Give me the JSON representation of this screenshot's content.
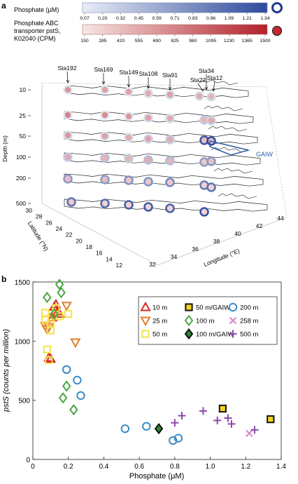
{
  "panel_labels": [
    "a",
    "b"
  ],
  "colorbars": {
    "phosphate": {
      "label_lines": [
        "Phosphate (µM)"
      ],
      "ticks": [
        "0.07",
        "0.20",
        "0.32",
        "0.45",
        "0.59",
        "0.71",
        "0.83",
        "0.96",
        "1.09",
        "1.21",
        "1.34"
      ],
      "color_low": "#e9edf7",
      "color_high": "#2d4a9b"
    },
    "psts": {
      "label_lines": [
        "Phosphate ABC",
        "transporter pstS,",
        "K02040 (CPM)"
      ],
      "ticks": [
        "150",
        "285",
        "420",
        "555",
        "690",
        "825",
        "960",
        "1095",
        "1230",
        "1365",
        "1500"
      ],
      "color_low": "#f6e6e3",
      "color_high": "#b3212b"
    }
  },
  "map3d": {
    "station_labels": [
      "Sta192",
      "Sta169",
      "Sta149",
      "Sta108",
      "Sta91",
      "Sta22",
      "Sta34",
      "Sta12"
    ],
    "depth_axis_label": "Depth (m)",
    "depth_ticks": [
      "10",
      "25",
      "50",
      "100",
      "200",
      "500"
    ],
    "latitude_axis_label": "Latitude (°N)",
    "latitude_ticks": [
      "30",
      "28",
      "26",
      "24",
      "22",
      "20",
      "18",
      "16",
      "14",
      "12"
    ],
    "longitude_axis_label": "Longitude (°E)",
    "longitude_ticks": [
      "32",
      "34",
      "36",
      "38",
      "40",
      "42",
      "44"
    ],
    "gaiw_label": "GAIW",
    "gaiw_color": "#2d5fa8"
  },
  "chart_data": {
    "type": "scatter",
    "xlabel": "Phosphate (µM)",
    "ylabel": "pstS (counts per million)",
    "xlim": [
      0,
      1.4
    ],
    "ylim": [
      0,
      1500
    ],
    "xticks": [
      "0",
      "0.2",
      "0.4",
      "0.6",
      "0.8",
      "1.0",
      "1.2",
      "1.4"
    ],
    "yticks": [
      "0",
      "500",
      "1000",
      "1500"
    ],
    "legend_position": "top-right",
    "series": [
      {
        "name": "10 m",
        "marker": "triangle-up",
        "color": "#d32a22",
        "fill": "none",
        "points": [
          [
            0.09,
            860
          ],
          [
            0.1,
            850
          ],
          [
            0.12,
            1290
          ],
          [
            0.13,
            1310
          ],
          [
            0.14,
            1250
          ],
          [
            0.11,
            1200
          ],
          [
            0.15,
            1230
          ]
        ]
      },
      {
        "name": "25 m",
        "marker": "triangle-down",
        "color": "#e07f2c",
        "fill": "none",
        "points": [
          [
            0.07,
            1130
          ],
          [
            0.08,
            1100
          ],
          [
            0.09,
            1120
          ],
          [
            0.19,
            1300
          ],
          [
            0.24,
            990
          ],
          [
            0.12,
            1200
          ]
        ]
      },
      {
        "name": "50 m",
        "marker": "square",
        "color": "#f4e24b",
        "fill": "none",
        "points": [
          [
            0.07,
            1240
          ],
          [
            0.07,
            1180
          ],
          [
            0.08,
            930
          ],
          [
            0.09,
            840
          ],
          [
            0.1,
            1090
          ],
          [
            0.1,
            1150
          ],
          [
            0.13,
            1280
          ],
          [
            0.15,
            1210
          ],
          [
            0.2,
            1230
          ]
        ]
      },
      {
        "name": "50 m/GAIW",
        "marker": "square",
        "color": "#111111",
        "fill": "#f4d41a",
        "points": [
          [
            1.07,
            430
          ],
          [
            1.34,
            340
          ]
        ]
      },
      {
        "name": "100 m",
        "marker": "diamond",
        "color": "#4ba644",
        "fill": "none",
        "points": [
          [
            0.08,
            1370
          ],
          [
            0.12,
            1230
          ],
          [
            0.15,
            1480
          ],
          [
            0.16,
            1410
          ],
          [
            0.17,
            520
          ],
          [
            0.19,
            620
          ],
          [
            0.23,
            420
          ]
        ]
      },
      {
        "name": "100 m/GAIW",
        "marker": "diamond",
        "color": "#111111",
        "fill": "#2d8a34",
        "points": [
          [
            0.71,
            260
          ]
        ]
      },
      {
        "name": "200 m",
        "marker": "circle",
        "color": "#3a8cc4",
        "fill": "none",
        "points": [
          [
            0.19,
            760
          ],
          [
            0.25,
            670
          ],
          [
            0.27,
            540
          ],
          [
            0.52,
            260
          ],
          [
            0.64,
            280
          ],
          [
            0.79,
            160
          ],
          [
            0.82,
            180
          ]
        ]
      },
      {
        "name": "258 m",
        "marker": "x",
        "color": "#d889c4",
        "fill": "none",
        "points": [
          [
            1.22,
            220
          ]
        ]
      },
      {
        "name": "500 m",
        "marker": "plus",
        "color": "#8a4aa8",
        "fill": "none",
        "points": [
          [
            0.8,
            310
          ],
          [
            0.84,
            370
          ],
          [
            0.96,
            410
          ],
          [
            1.04,
            330
          ],
          [
            1.1,
            350
          ],
          [
            1.12,
            300
          ],
          [
            1.25,
            250
          ]
        ]
      }
    ]
  }
}
